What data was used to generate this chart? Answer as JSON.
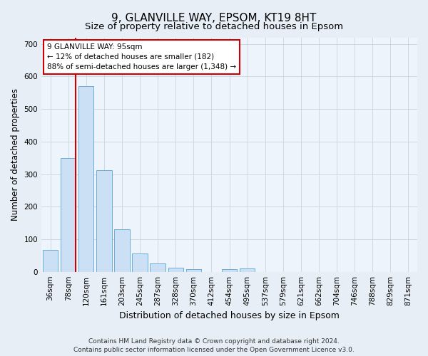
{
  "title": "9, GLANVILLE WAY, EPSOM, KT19 8HT",
  "subtitle": "Size of property relative to detached houses in Epsom",
  "xlabel": "Distribution of detached houses by size in Epsom",
  "ylabel": "Number of detached properties",
  "categories": [
    "36sqm",
    "78sqm",
    "120sqm",
    "161sqm",
    "203sqm",
    "245sqm",
    "287sqm",
    "328sqm",
    "370sqm",
    "412sqm",
    "454sqm",
    "495sqm",
    "537sqm",
    "579sqm",
    "621sqm",
    "662sqm",
    "704sqm",
    "746sqm",
    "788sqm",
    "829sqm",
    "871sqm"
  ],
  "values": [
    68,
    350,
    570,
    313,
    130,
    57,
    25,
    13,
    7,
    0,
    7,
    10,
    0,
    0,
    0,
    0,
    0,
    0,
    0,
    0,
    0
  ],
  "bar_color": "#cce0f5",
  "bar_edge_color": "#6aaed6",
  "vline_color": "#cc0000",
  "annotation_text": "9 GLANVILLE WAY: 95sqm\n← 12% of detached houses are smaller (182)\n88% of semi-detached houses are larger (1,348) →",
  "annotation_box_color": "#ffffff",
  "annotation_box_edge": "#cc0000",
  "ylim": [
    0,
    720
  ],
  "yticks": [
    0,
    100,
    200,
    300,
    400,
    500,
    600,
    700
  ],
  "footer": "Contains HM Land Registry data © Crown copyright and database right 2024.\nContains public sector information licensed under the Open Government Licence v3.0.",
  "title_fontsize": 11,
  "subtitle_fontsize": 9.5,
  "xlabel_fontsize": 9,
  "ylabel_fontsize": 8.5,
  "tick_fontsize": 7.5,
  "annotation_fontsize": 7.5,
  "footer_fontsize": 6.5,
  "bg_color": "#e8eef5",
  "plot_bg_color": "#eef4fb",
  "grid_color": "#c8d4e0"
}
